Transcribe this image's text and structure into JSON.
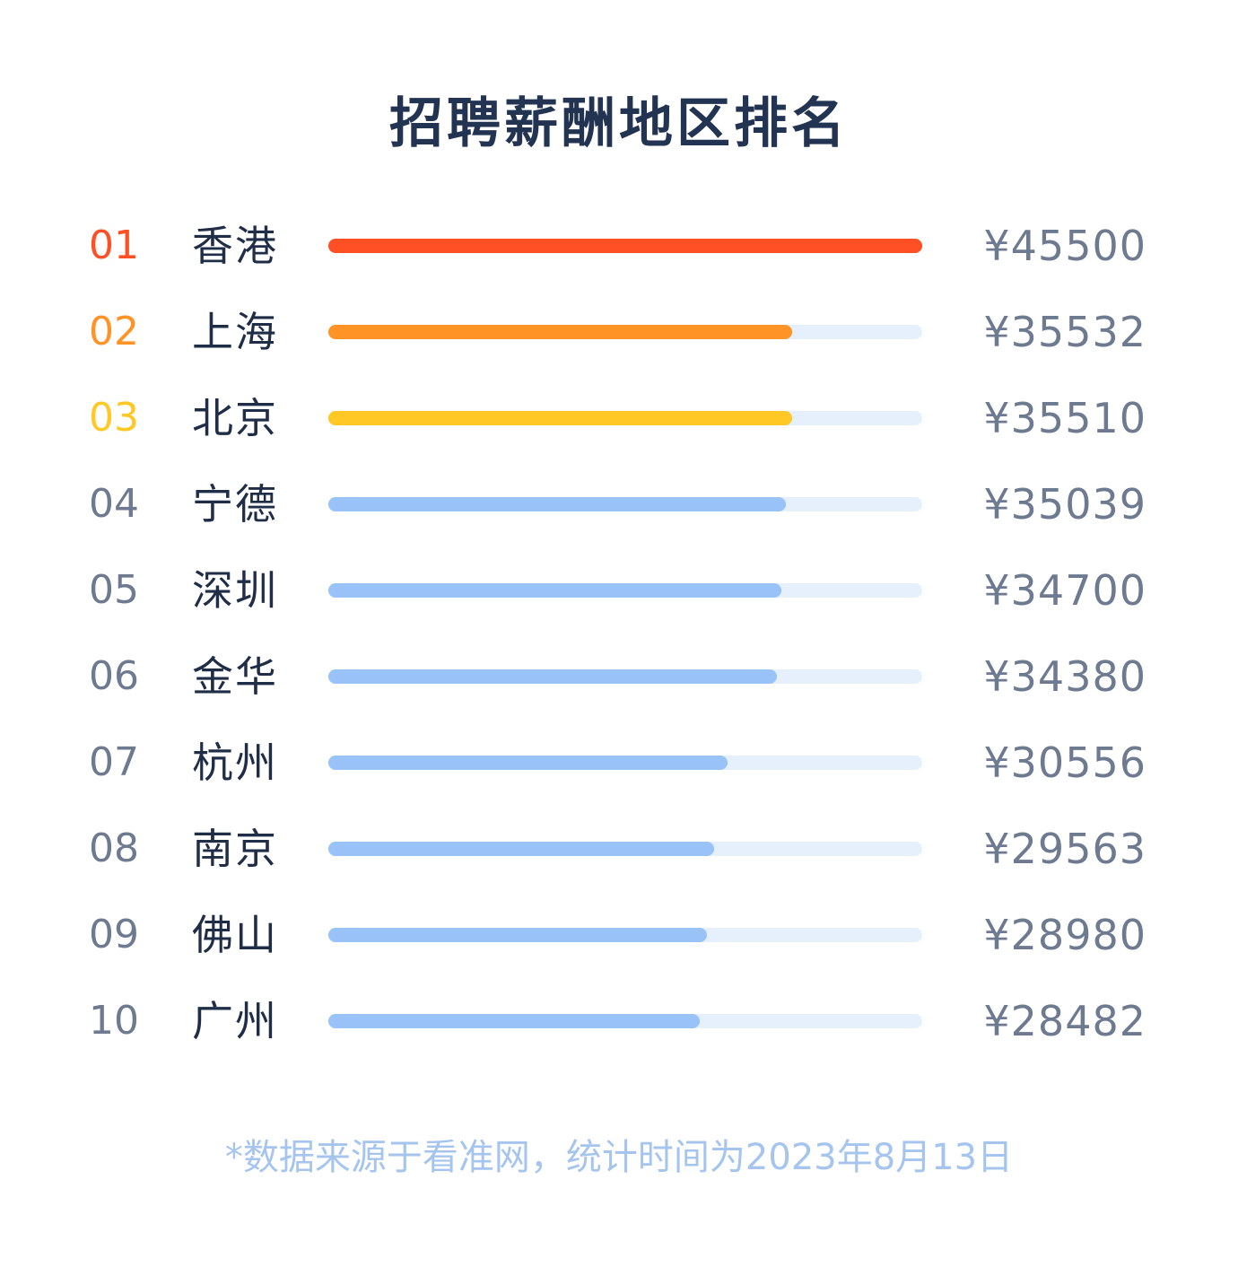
{
  "title": "招聘薪酬地区排名",
  "footnote": "*数据来源于看准网，统计时间为2023年8月13日",
  "colors": {
    "top1": "#ff4f24",
    "top2": "#ff9325",
    "top3": "#ffc825",
    "rest": "#98c2f8",
    "track": "#e6f0fd",
    "rank_rest": "#6d7a90"
  },
  "chart_data": {
    "type": "bar",
    "title": "招聘薪酬地区排名",
    "orientation": "horizontal",
    "xlim": [
      0,
      45500
    ],
    "categories": [
      "香港",
      "上海",
      "北京",
      "宁德",
      "深圳",
      "金华",
      "杭州",
      "南京",
      "佛山",
      "广州"
    ],
    "ranks": [
      "01",
      "02",
      "03",
      "04",
      "05",
      "06",
      "07",
      "08",
      "09",
      "10"
    ],
    "values": [
      45500,
      35532,
      35510,
      35039,
      34700,
      34380,
      30556,
      29563,
      28980,
      28482
    ],
    "value_labels": [
      "¥45500",
      "¥35532",
      "¥35510",
      "¥35039",
      "¥34700",
      "¥34380",
      "¥30556",
      "¥29563",
      "¥28980",
      "¥28482"
    ]
  }
}
